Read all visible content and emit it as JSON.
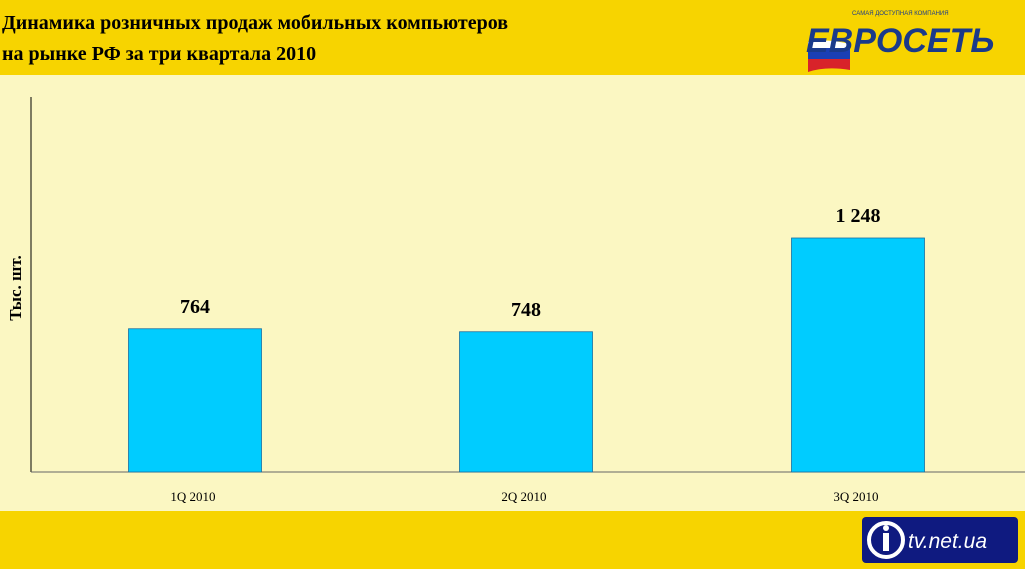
{
  "header": {
    "title": "Динамика розничных продаж мобильных компьютеров\nна рынке РФ за три квартала 2010",
    "logo_text": "ЕВРОСЕТЬ",
    "logo_subtitle": "САМАЯ ДОСТУПНАЯ КОМПАНИЯ"
  },
  "watermark": {
    "text": "tv.net.ua"
  },
  "colors": {
    "band": "#f7d400",
    "background": "#fbf7c2",
    "bar": "#00ccff"
  },
  "chart_data": {
    "type": "bar",
    "categories": [
      "1Q 2010",
      "2Q 2010",
      "3Q 2010"
    ],
    "values": [
      764,
      748,
      1248
    ],
    "value_labels": [
      "764",
      "748",
      "1 248"
    ],
    "ylabel": "Тыс. шт.",
    "xlabel": "",
    "ylim": [
      0,
      2000
    ],
    "grid": false,
    "legend": "none"
  }
}
